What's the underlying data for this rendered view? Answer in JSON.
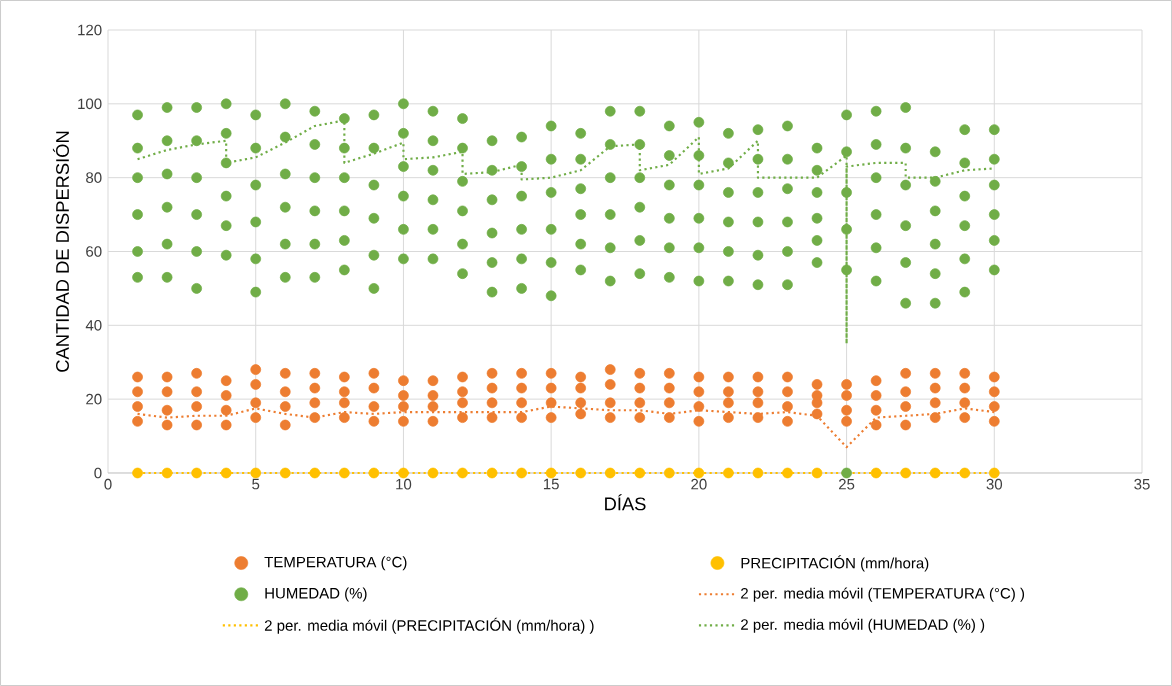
{
  "chart_data": {
    "type": "scatter",
    "xlabel": "DÍAS",
    "ylabel": "CANTIDAD DE DISPERSIÓN",
    "xlim": [
      0,
      35
    ],
    "xticks": [
      0,
      5,
      10,
      15,
      20,
      25,
      30,
      35
    ],
    "ylim": [
      0,
      120
    ],
    "yticks": [
      0,
      20,
      40,
      60,
      80,
      100,
      120
    ],
    "grid": true,
    "legend": "bottom",
    "marker": "circle",
    "series": [
      {
        "name": "TEMPERATURA (°C)",
        "color": "#ed7d31",
        "x": [
          1,
          1,
          1,
          1,
          2,
          2,
          2,
          2,
          3,
          3,
          3,
          3,
          4,
          4,
          4,
          4,
          5,
          5,
          5,
          5,
          6,
          6,
          6,
          6,
          7,
          7,
          7,
          7,
          8,
          8,
          8,
          8,
          9,
          9,
          9,
          9,
          10,
          10,
          10,
          10,
          11,
          11,
          11,
          11,
          12,
          12,
          12,
          12,
          13,
          13,
          13,
          13,
          14,
          14,
          14,
          14,
          15,
          15,
          15,
          15,
          16,
          16,
          16,
          16,
          17,
          17,
          17,
          17,
          18,
          18,
          18,
          18,
          19,
          19,
          19,
          19,
          20,
          20,
          20,
          20,
          21,
          21,
          21,
          21,
          22,
          22,
          22,
          22,
          23,
          23,
          23,
          23,
          24,
          24,
          24,
          24,
          25,
          25,
          25,
          25,
          26,
          26,
          26,
          26,
          27,
          27,
          27,
          27,
          28,
          28,
          28,
          28,
          29,
          29,
          29,
          29,
          30,
          30,
          30,
          30
        ],
        "values": [
          14,
          18,
          22,
          26,
          13,
          17,
          22,
          26,
          13,
          18,
          22,
          27,
          13,
          17,
          21,
          25,
          15,
          19,
          24,
          28,
          13,
          18,
          22,
          27,
          15,
          19,
          23,
          27,
          15,
          19,
          22,
          26,
          14,
          18,
          23,
          27,
          14,
          18,
          21,
          25,
          14,
          18,
          21,
          25,
          15,
          19,
          22,
          26,
          15,
          19,
          23,
          27,
          15,
          19,
          23,
          27,
          15,
          19,
          23,
          27,
          16,
          19,
          23,
          26,
          15,
          19,
          24,
          28,
          15,
          19,
          23,
          27,
          15,
          19,
          23,
          27,
          14,
          18,
          22,
          26,
          15,
          19,
          22,
          26,
          15,
          19,
          22,
          26,
          14,
          18,
          22,
          26,
          16,
          19,
          21,
          24,
          14,
          17,
          21,
          24,
          13,
          17,
          21,
          25,
          13,
          18,
          22,
          27,
          15,
          19,
          23,
          27,
          15,
          19,
          23,
          27,
          14,
          18,
          22,
          26
        ]
      },
      {
        "name": "PRECIPITACIÓN (mm/hora)",
        "color": "#ffc000",
        "x": [
          1,
          2,
          3,
          4,
          5,
          6,
          7,
          8,
          9,
          10,
          11,
          12,
          13,
          14,
          15,
          16,
          17,
          18,
          19,
          20,
          21,
          22,
          23,
          24,
          25,
          26,
          27,
          28,
          29,
          30
        ],
        "values": [
          0,
          0,
          0,
          0,
          0,
          0,
          0,
          0,
          0,
          0,
          0,
          0,
          0,
          0,
          0,
          0,
          0,
          0,
          0,
          0,
          0,
          0,
          0,
          0,
          null,
          0,
          0,
          0,
          0,
          0
        ]
      },
      {
        "name": "HUMEDAD (%)",
        "color": "#70ad47",
        "x": [
          1,
          1,
          1,
          1,
          1,
          1,
          2,
          2,
          2,
          2,
          2,
          2,
          3,
          3,
          3,
          3,
          3,
          3,
          4,
          4,
          4,
          4,
          4,
          4,
          5,
          5,
          5,
          5,
          5,
          5,
          6,
          6,
          6,
          6,
          6,
          6,
          7,
          7,
          7,
          7,
          7,
          7,
          8,
          8,
          8,
          8,
          8,
          8,
          9,
          9,
          9,
          9,
          9,
          9,
          10,
          10,
          10,
          10,
          10,
          10,
          11,
          11,
          11,
          11,
          11,
          11,
          12,
          12,
          12,
          12,
          12,
          12,
          13,
          13,
          13,
          13,
          13,
          13,
          14,
          14,
          14,
          14,
          14,
          14,
          15,
          15,
          15,
          15,
          15,
          15,
          16,
          16,
          16,
          16,
          16,
          16,
          17,
          17,
          17,
          17,
          17,
          17,
          18,
          18,
          18,
          18,
          18,
          18,
          19,
          19,
          19,
          19,
          19,
          19,
          20,
          20,
          20,
          20,
          20,
          20,
          21,
          21,
          21,
          21,
          21,
          21,
          22,
          22,
          22,
          22,
          22,
          22,
          23,
          23,
          23,
          23,
          23,
          23,
          24,
          24,
          24,
          24,
          24,
          24,
          25,
          25,
          25,
          25,
          25,
          25,
          26,
          26,
          26,
          26,
          26,
          26,
          27,
          27,
          27,
          27,
          27,
          27,
          28,
          28,
          28,
          28,
          28,
          28,
          29,
          29,
          29,
          29,
          29,
          29,
          30,
          30,
          30,
          30,
          30,
          30
        ],
        "values": [
          53,
          60,
          70,
          80,
          88,
          97,
          53,
          62,
          72,
          81,
          90,
          99,
          50,
          60,
          70,
          80,
          90,
          99,
          59,
          67,
          75,
          84,
          92,
          100,
          49,
          58,
          68,
          78,
          88,
          97,
          53,
          62,
          72,
          81,
          91,
          100,
          53,
          62,
          71,
          80,
          89,
          98,
          55,
          63,
          71,
          80,
          88,
          96,
          50,
          59,
          69,
          78,
          88,
          97,
          58,
          66,
          75,
          83,
          92,
          100,
          58,
          66,
          74,
          82,
          90,
          98,
          54,
          62,
          71,
          79,
          88,
          96,
          49,
          57,
          65,
          74,
          82,
          90,
          50,
          58,
          66,
          75,
          83,
          91,
          48,
          57,
          66,
          76,
          85,
          94,
          55,
          62,
          70,
          77,
          85,
          92,
          52,
          61,
          70,
          80,
          89,
          98,
          54,
          63,
          72,
          80,
          89,
          98,
          53,
          61,
          69,
          78,
          86,
          94,
          52,
          61,
          69,
          78,
          86,
          95,
          52,
          60,
          68,
          76,
          84,
          92,
          51,
          59,
          68,
          76,
          85,
          93,
          51,
          60,
          68,
          77,
          85,
          94,
          57,
          63,
          69,
          76,
          82,
          88,
          0,
          55,
          66,
          76,
          87,
          97,
          52,
          61,
          70,
          80,
          89,
          98,
          46,
          57,
          67,
          78,
          88,
          99,
          46,
          54,
          62,
          71,
          79,
          87,
          49,
          58,
          67,
          75,
          84,
          93,
          55,
          63,
          70,
          78,
          85,
          93
        ]
      },
      {
        "name": "2 per. media móvil (TEMPERATURA (°C) )",
        "type": "line",
        "line_style": "dotted",
        "marker": "none",
        "color": "#ed7d31",
        "x": [
          1,
          2,
          3,
          4,
          5,
          6,
          7,
          8,
          9,
          10,
          11,
          12,
          13,
          14,
          15,
          16,
          17,
          18,
          19,
          20,
          21,
          22,
          23,
          24,
          25,
          26,
          27,
          28,
          29,
          30
        ],
        "values": [
          16,
          15,
          15.5,
          15.5,
          17.5,
          16,
          15,
          16.5,
          16,
          16.5,
          16.5,
          16.5,
          16.5,
          16.5,
          18,
          17.5,
          17,
          17,
          16,
          17,
          16.5,
          16,
          16.5,
          15.5,
          7,
          15,
          15.5,
          16,
          17.5,
          16.5
        ]
      },
      {
        "name": "2 per. media móvil (PRECIPITACIÓN (mm/hora) )",
        "type": "line",
        "line_style": "dotted",
        "marker": "none",
        "color": "#ffc000",
        "x": [
          1,
          30
        ],
        "values": [
          0,
          0
        ]
      },
      {
        "name": "2 per. media móvil (HUMEDAD (%) )",
        "type": "line",
        "line_style": "dotted",
        "marker": "none",
        "color": "#70ad47",
        "x": [
          1,
          2,
          3,
          4,
          4,
          5,
          6,
          7,
          8,
          8,
          9,
          10,
          10,
          11,
          12,
          12,
          13,
          14,
          14,
          15,
          16,
          17,
          18,
          18,
          19,
          20,
          20,
          21,
          22,
          22,
          23,
          24,
          25,
          25,
          25,
          26,
          27,
          27,
          28,
          29,
          30
        ],
        "values": [
          85,
          87.5,
          89,
          90,
          84,
          85.5,
          89.5,
          94,
          95.5,
          84,
          86.5,
          89.5,
          85,
          85.5,
          87,
          81,
          81.5,
          83.5,
          79.5,
          80,
          82,
          88.5,
          89,
          82,
          83.5,
          91,
          81,
          82.5,
          90,
          80,
          80,
          80,
          86,
          35,
          83,
          84,
          84,
          80,
          80,
          82,
          82.5
        ]
      }
    ]
  }
}
